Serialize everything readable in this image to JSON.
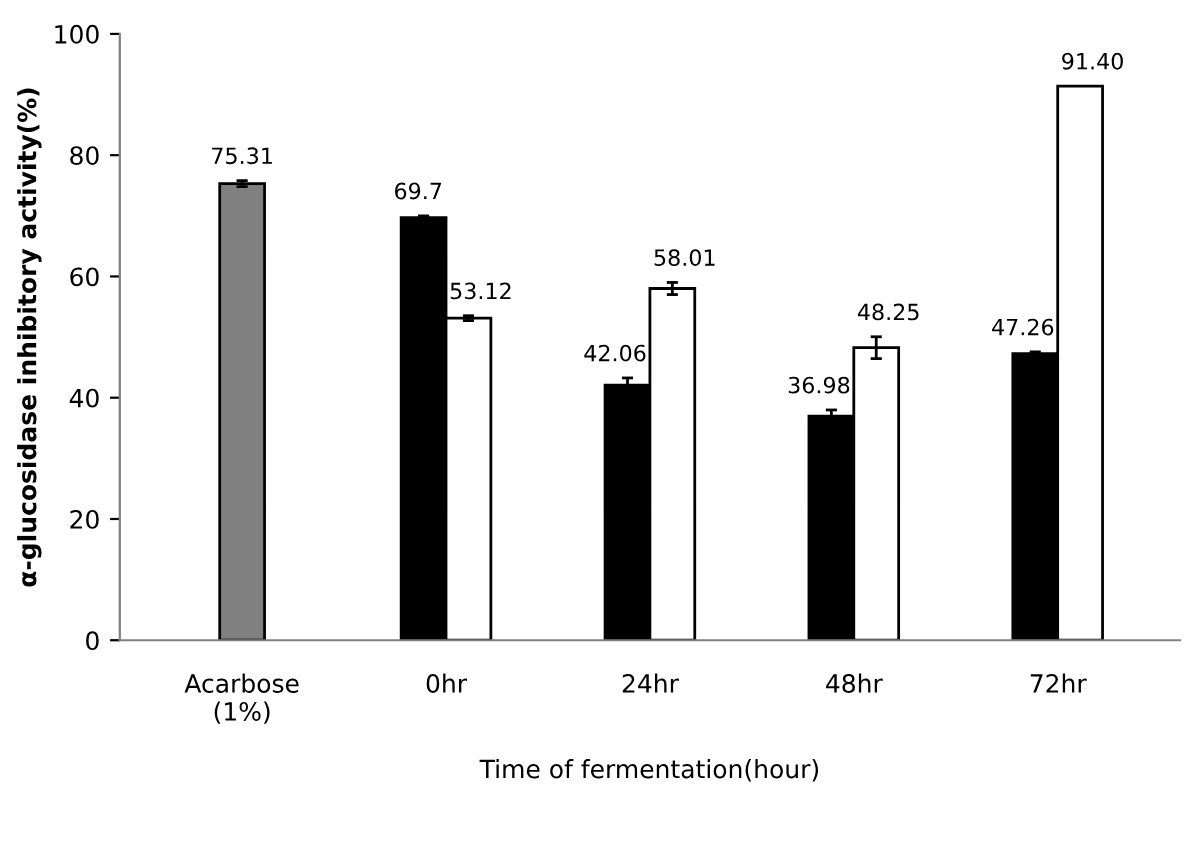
{
  "chart_data": {
    "type": "bar",
    "categories": [
      "Acarbose\n(1%)",
      "0hr",
      "24hr",
      "48hr",
      "72hr"
    ],
    "series": [
      {
        "colors": [
          "#808080",
          "#000000",
          "#000000",
          "#000000",
          "#000000"
        ],
        "values": [
          75.31,
          69.7,
          42.06,
          36.98,
          47.26
        ],
        "errors": [
          0.5,
          0.3,
          1.2,
          1.0,
          0.3
        ],
        "value_labels": [
          "75.31",
          "69.7",
          "42.06",
          "36.98",
          "47.26"
        ]
      },
      {
        "color": "#ffffff",
        "values": [
          null,
          53.12,
          58.01,
          48.25,
          91.4
        ],
        "errors": [
          null,
          0.4,
          1.0,
          1.8,
          null
        ],
        "value_labels": [
          null,
          "53.12",
          "58.01",
          "48.25",
          "91.40"
        ]
      }
    ],
    "xlabel": "Time of fermentation(hour)",
    "ylabel": "α-glucosidase inhibitory activity(%)",
    "ylim": [
      0,
      100
    ],
    "yticks": [
      0,
      20,
      40,
      60,
      80,
      100
    ],
    "grid": false,
    "legend": false
  }
}
